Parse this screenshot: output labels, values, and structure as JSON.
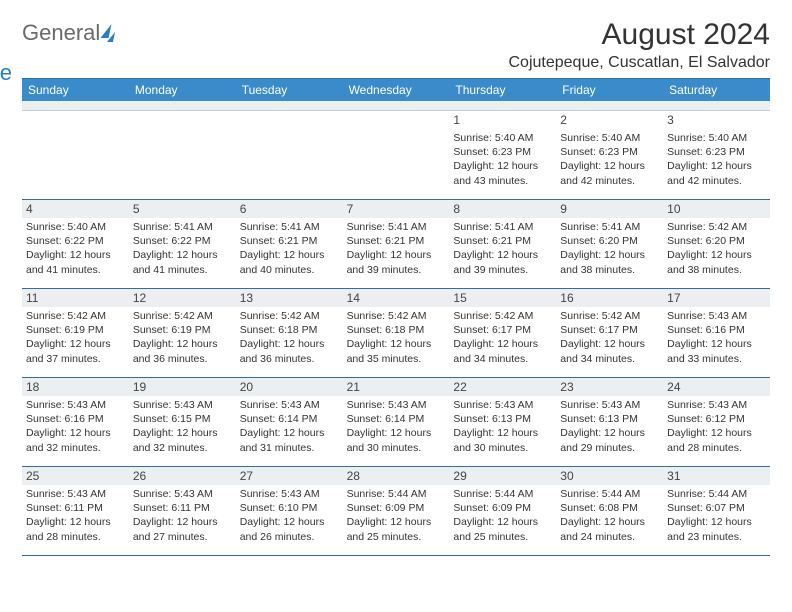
{
  "logo": {
    "part1": "General",
    "part2": "Blue"
  },
  "header": {
    "title": "August 2024",
    "location": "Cojutepeque, Cuscatlan, El Salvador"
  },
  "day_names": [
    "Sunday",
    "Monday",
    "Tuesday",
    "Wednesday",
    "Thursday",
    "Friday",
    "Saturday"
  ],
  "colors": {
    "header_bg": "#3a8bc9",
    "header_text": "#ffffff",
    "row_border": "#3a6a9a",
    "shade_bg": "#eceff1",
    "logo_gray": "#6a6a6a",
    "logo_blue": "#2a7fc4",
    "text": "#333333"
  },
  "weeks": [
    [
      {
        "day": "",
        "sunrise": "",
        "sunset": "",
        "daylight": ""
      },
      {
        "day": "",
        "sunrise": "",
        "sunset": "",
        "daylight": ""
      },
      {
        "day": "",
        "sunrise": "",
        "sunset": "",
        "daylight": ""
      },
      {
        "day": "",
        "sunrise": "",
        "sunset": "",
        "daylight": ""
      },
      {
        "day": "1",
        "sunrise": "5:40 AM",
        "sunset": "6:23 PM",
        "daylight": "12 hours and 43 minutes."
      },
      {
        "day": "2",
        "sunrise": "5:40 AM",
        "sunset": "6:23 PM",
        "daylight": "12 hours and 42 minutes."
      },
      {
        "day": "3",
        "sunrise": "5:40 AM",
        "sunset": "6:23 PM",
        "daylight": "12 hours and 42 minutes."
      }
    ],
    [
      {
        "day": "4",
        "sunrise": "5:40 AM",
        "sunset": "6:22 PM",
        "daylight": "12 hours and 41 minutes."
      },
      {
        "day": "5",
        "sunrise": "5:41 AM",
        "sunset": "6:22 PM",
        "daylight": "12 hours and 41 minutes."
      },
      {
        "day": "6",
        "sunrise": "5:41 AM",
        "sunset": "6:21 PM",
        "daylight": "12 hours and 40 minutes."
      },
      {
        "day": "7",
        "sunrise": "5:41 AM",
        "sunset": "6:21 PM",
        "daylight": "12 hours and 39 minutes."
      },
      {
        "day": "8",
        "sunrise": "5:41 AM",
        "sunset": "6:21 PM",
        "daylight": "12 hours and 39 minutes."
      },
      {
        "day": "9",
        "sunrise": "5:41 AM",
        "sunset": "6:20 PM",
        "daylight": "12 hours and 38 minutes."
      },
      {
        "day": "10",
        "sunrise": "5:42 AM",
        "sunset": "6:20 PM",
        "daylight": "12 hours and 38 minutes."
      }
    ],
    [
      {
        "day": "11",
        "sunrise": "5:42 AM",
        "sunset": "6:19 PM",
        "daylight": "12 hours and 37 minutes."
      },
      {
        "day": "12",
        "sunrise": "5:42 AM",
        "sunset": "6:19 PM",
        "daylight": "12 hours and 36 minutes."
      },
      {
        "day": "13",
        "sunrise": "5:42 AM",
        "sunset": "6:18 PM",
        "daylight": "12 hours and 36 minutes."
      },
      {
        "day": "14",
        "sunrise": "5:42 AM",
        "sunset": "6:18 PM",
        "daylight": "12 hours and 35 minutes."
      },
      {
        "day": "15",
        "sunrise": "5:42 AM",
        "sunset": "6:17 PM",
        "daylight": "12 hours and 34 minutes."
      },
      {
        "day": "16",
        "sunrise": "5:42 AM",
        "sunset": "6:17 PM",
        "daylight": "12 hours and 34 minutes."
      },
      {
        "day": "17",
        "sunrise": "5:43 AM",
        "sunset": "6:16 PM",
        "daylight": "12 hours and 33 minutes."
      }
    ],
    [
      {
        "day": "18",
        "sunrise": "5:43 AM",
        "sunset": "6:16 PM",
        "daylight": "12 hours and 32 minutes."
      },
      {
        "day": "19",
        "sunrise": "5:43 AM",
        "sunset": "6:15 PM",
        "daylight": "12 hours and 32 minutes."
      },
      {
        "day": "20",
        "sunrise": "5:43 AM",
        "sunset": "6:14 PM",
        "daylight": "12 hours and 31 minutes."
      },
      {
        "day": "21",
        "sunrise": "5:43 AM",
        "sunset": "6:14 PM",
        "daylight": "12 hours and 30 minutes."
      },
      {
        "day": "22",
        "sunrise": "5:43 AM",
        "sunset": "6:13 PM",
        "daylight": "12 hours and 30 minutes."
      },
      {
        "day": "23",
        "sunrise": "5:43 AM",
        "sunset": "6:13 PM",
        "daylight": "12 hours and 29 minutes."
      },
      {
        "day": "24",
        "sunrise": "5:43 AM",
        "sunset": "6:12 PM",
        "daylight": "12 hours and 28 minutes."
      }
    ],
    [
      {
        "day": "25",
        "sunrise": "5:43 AM",
        "sunset": "6:11 PM",
        "daylight": "12 hours and 28 minutes."
      },
      {
        "day": "26",
        "sunrise": "5:43 AM",
        "sunset": "6:11 PM",
        "daylight": "12 hours and 27 minutes."
      },
      {
        "day": "27",
        "sunrise": "5:43 AM",
        "sunset": "6:10 PM",
        "daylight": "12 hours and 26 minutes."
      },
      {
        "day": "28",
        "sunrise": "5:44 AM",
        "sunset": "6:09 PM",
        "daylight": "12 hours and 25 minutes."
      },
      {
        "day": "29",
        "sunrise": "5:44 AM",
        "sunset": "6:09 PM",
        "daylight": "12 hours and 25 minutes."
      },
      {
        "day": "30",
        "sunrise": "5:44 AM",
        "sunset": "6:08 PM",
        "daylight": "12 hours and 24 minutes."
      },
      {
        "day": "31",
        "sunrise": "5:44 AM",
        "sunset": "6:07 PM",
        "daylight": "12 hours and 23 minutes."
      }
    ]
  ],
  "labels": {
    "sunrise_prefix": "Sunrise: ",
    "sunset_prefix": "Sunset: ",
    "daylight_prefix": "Daylight: "
  }
}
